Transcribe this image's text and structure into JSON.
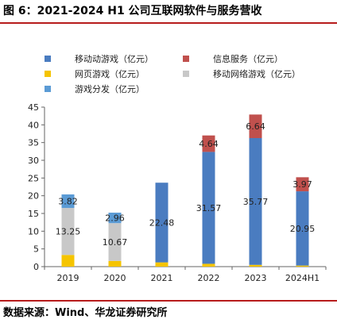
{
  "title": "图 6：2021-2024 H1 公司互联网软件与服务营收",
  "source": "数据来源：Wind、华龙证券研究所",
  "colors": {
    "accent_rule": "#b71c1c"
  },
  "chart_data": {
    "type": "bar",
    "stacked": true,
    "categories": [
      "2019",
      "2020",
      "2021",
      "2022",
      "2023",
      "2024H1"
    ],
    "ylim": [
      0,
      45
    ],
    "yticks": [
      0,
      5,
      10,
      15,
      20,
      25,
      30,
      35,
      40,
      45
    ],
    "grid": false,
    "legend_position": "top",
    "series": [
      {
        "name": "移动动游戏（亿元）",
        "color": "#4a7cc0",
        "values": [
          0,
          0,
          22.48,
          31.57,
          35.77,
          20.95
        ],
        "labels": [
          "",
          "",
          "22.48",
          "31.57",
          "35.77",
          "20.95"
        ]
      },
      {
        "name": "网页游戏（亿元）",
        "color": "#f5c400",
        "values": [
          3.3,
          1.6,
          1.2,
          0.8,
          0.5,
          0.3
        ],
        "labels": [
          "",
          "",
          "",
          "",
          "",
          ""
        ]
      },
      {
        "name": "游戏分发（亿元）",
        "color": "#5b9bd5",
        "values": [
          3.82,
          2.96,
          0,
          0,
          0,
          0
        ],
        "labels": [
          "3.82",
          "2.96",
          "",
          "",
          "",
          ""
        ]
      },
      {
        "name": "信息服务（亿元）",
        "color": "#c0504d",
        "values": [
          0,
          0,
          0,
          4.64,
          6.64,
          3.97
        ],
        "labels": [
          "",
          "",
          "",
          "4.64",
          "6.64",
          "3.97"
        ]
      },
      {
        "name": "移动网络游戏（亿元）",
        "color": "#c8c8c8",
        "values": [
          13.25,
          10.67,
          0,
          0,
          0,
          0
        ],
        "labels": [
          "13.25",
          "10.67",
          "",
          "",
          "",
          ""
        ]
      }
    ],
    "stack_order": [
      1,
      4,
      0,
      3,
      2
    ]
  }
}
